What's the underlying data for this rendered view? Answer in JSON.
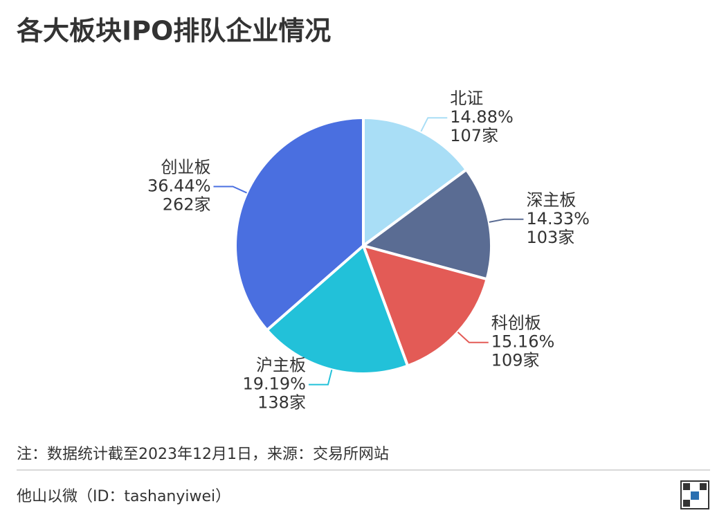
{
  "chart_data": {
    "type": "pie",
    "title": "各大板块IPO排队企业情况",
    "categories": [
      "北证",
      "深主板",
      "科创板",
      "沪主板",
      "创业板"
    ],
    "values": [
      14.88,
      14.33,
      15.16,
      19.19,
      36.44
    ],
    "value_labels": [
      "14.88%",
      "14.33%",
      "15.16%",
      "19.19%",
      "36.44%"
    ],
    "count_labels": [
      "107家",
      "103家",
      "109家",
      "138家",
      "262家"
    ],
    "colors": [
      "#a9def6",
      "#5a6c93",
      "#e35b56",
      "#22c1d9",
      "#4a6fe0"
    ],
    "note": "注：数据统计截至2023年12月1日，来源：交易所网站",
    "footer": "他山以微（ID：tashanyiwei）"
  }
}
